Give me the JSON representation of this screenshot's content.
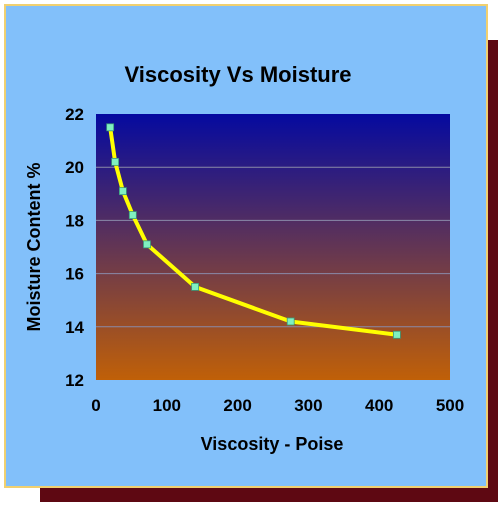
{
  "chart_data": {
    "type": "line",
    "title": "Viscosity Vs Moisture",
    "xlabel": "Viscosity - Poise",
    "ylabel": "Moisture Content %",
    "xlim": [
      0,
      500
    ],
    "ylim": [
      12,
      22
    ],
    "xticks": [
      0,
      100,
      200,
      300,
      400,
      500
    ],
    "yticks": [
      12,
      14,
      16,
      18,
      20,
      22
    ],
    "grid": true,
    "legend": "none",
    "series": [
      {
        "x": [
          20,
          27,
          38,
          52,
          72,
          140,
          275,
          425
        ],
        "y": [
          21.5,
          20.2,
          19.1,
          18.2,
          17.1,
          15.5,
          14.2,
          13.7
        ]
      }
    ],
    "colors": {
      "line": "#ffff00",
      "marker": "#80f0c0",
      "plot_top": "#050aa0",
      "plot_bottom": "#c06008",
      "frame_bg": "#82c0fa",
      "shadow": "#5e0812"
    }
  }
}
